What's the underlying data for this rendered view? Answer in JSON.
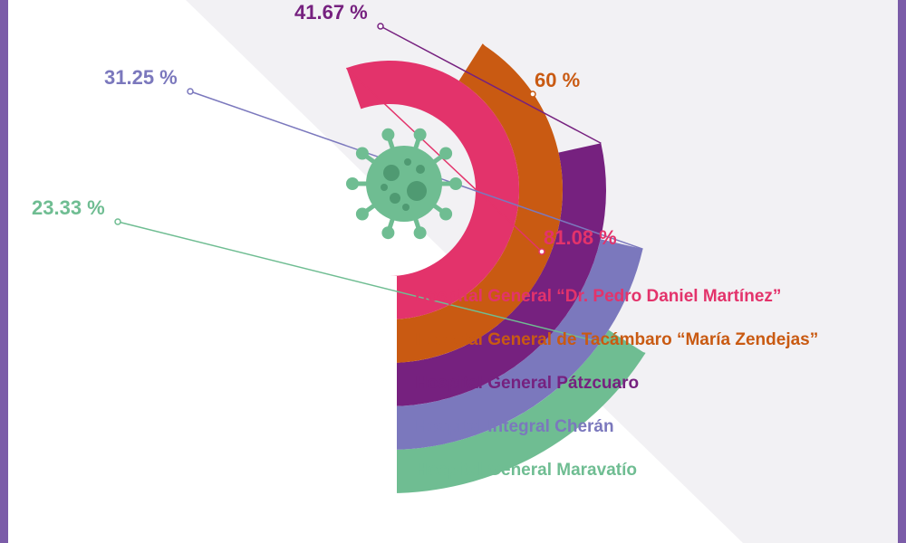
{
  "chart_data": {
    "type": "radial-bar",
    "unit": "%",
    "series": [
      {
        "name": "Hospital General “Dr. Pedro Daniel Martínez”",
        "value": 81.08,
        "label": "81.08 %",
        "color": "#e3336b"
      },
      {
        "name": "Hospital General de Tacámbaro “María Zendejas”",
        "value": 60,
        "label": "60 %",
        "color": "#c95a12"
      },
      {
        "name": "Hospital General Pátzcuaro",
        "value": 41.67,
        "label": "41.67 %",
        "color": "#76217f"
      },
      {
        "name": "Hospital Integral Cherán",
        "value": 31.25,
        "label": "31.25 %",
        "color": "#7b78bd"
      },
      {
        "name": "Hospital General Maravatío",
        "value": 23.33,
        "label": "23.33 %",
        "color": "#6fbd92"
      }
    ],
    "center_icon": "virus-icon",
    "icon_color": "#6fbd92"
  },
  "theme": {
    "frame_color": "#7b5ca8",
    "background": "#ffffff",
    "shade": "#f2f1f4"
  }
}
